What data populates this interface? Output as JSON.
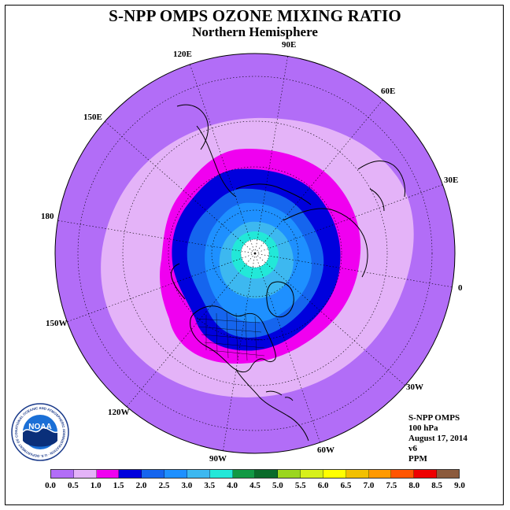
{
  "header": {
    "title": "S-NPP OMPS OZONE MIXING RATIO",
    "subtitle": "Northern Hemisphere"
  },
  "map": {
    "longitude_labels": [
      "90E",
      "60E",
      "30E",
      "0",
      "30W",
      "60W",
      "90W",
      "120W",
      "150W",
      "180",
      "150E",
      "120E"
    ],
    "colors": {
      "land_outline": "#000000",
      "graticule": "#000000",
      "polar_gap": "#ffffff"
    }
  },
  "info": {
    "lines": [
      "S-NPP OMPS",
      "100 hPa",
      "August 17, 2014",
      "v6",
      "PPM"
    ]
  },
  "colorbar": {
    "tick_labels": [
      "0.0",
      "0.5",
      "1.0",
      "1.5",
      "2.0",
      "2.5",
      "3.0",
      "3.5",
      "4.0",
      "4.5",
      "5.0",
      "5.5",
      "6.0",
      "6.5",
      "7.0",
      "7.5",
      "8.0",
      "8.5",
      "9.0"
    ],
    "colors": [
      "#b26df7",
      "#e4b3f8",
      "#f000f0",
      "#0000dd",
      "#1565ee",
      "#1e90ff",
      "#3db8f0",
      "#22e8d8",
      "#119944",
      "#0a6b2a",
      "#9bd61e",
      "#d7f01a",
      "#ffff00",
      "#f2c000",
      "#ff9900",
      "#ff5500",
      "#ee0000",
      "#8b5a3c"
    ]
  },
  "logo": {
    "text": "NOAA",
    "ring_text": "NATIONAL OCEANIC AND ATMOSPHERIC ADMINISTRATION · U.S. DEPARTMENT OF COMMERCE"
  }
}
